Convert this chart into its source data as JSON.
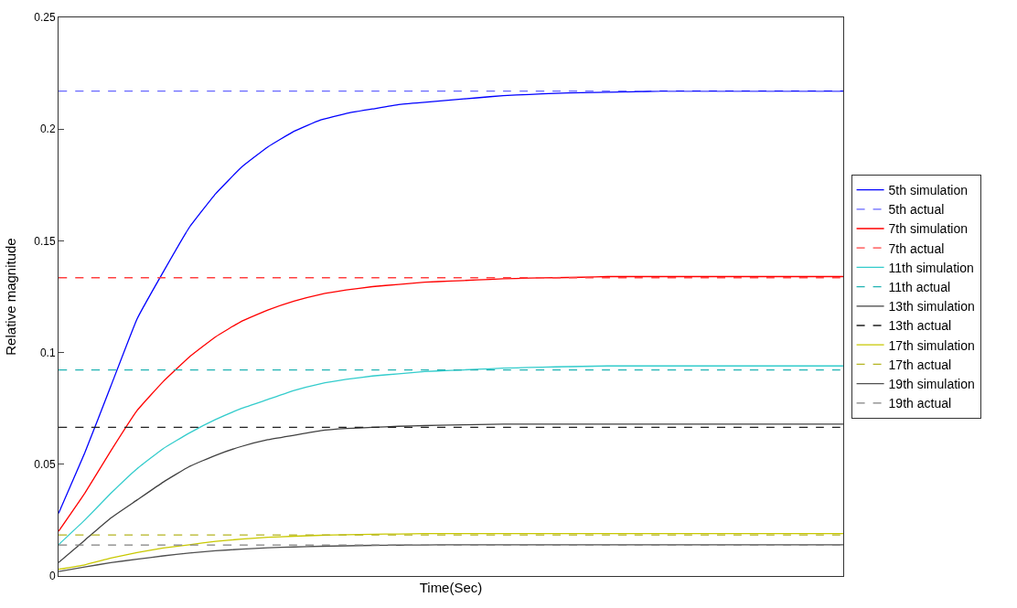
{
  "chart_data": {
    "type": "line",
    "xlabel": "Time(Sec)",
    "ylabel": "Relative magnitude",
    "categories": [
      null,
      null,
      null,
      null,
      null,
      null,
      null,
      null,
      null,
      null,
      null,
      null,
      null,
      null,
      null,
      null,
      null,
      null,
      null,
      null,
      null,
      null,
      null,
      null,
      null,
      null,
      null,
      null,
      null,
      null,
      null
    ],
    "ylim": [
      0,
      0.25
    ],
    "yticks": [
      0,
      0.05,
      0.1,
      0.15,
      0.2,
      0.25
    ],
    "tick_labels": "y",
    "legend": "right",
    "marker": "none",
    "series": [
      {
        "name": "5th simulation",
        "color": "#0000ff",
        "line_style": "solid",
        "values": [
          0.028,
          0.055,
          0.085,
          0.115,
          0.136,
          0.156,
          0.171,
          0.183,
          0.192,
          0.199,
          0.204,
          0.207,
          0.209,
          0.211,
          0.212,
          0.213,
          0.214,
          0.215,
          0.2155,
          0.216,
          0.2163,
          0.2165,
          0.2167,
          0.217,
          0.217,
          0.217,
          0.217,
          0.217,
          0.217,
          0.217,
          0.217
        ]
      },
      {
        "name": "5th actual",
        "color": "#6666ff",
        "line_style": "dashed",
        "values": [
          0.217,
          0.217,
          0.217,
          0.217,
          0.217,
          0.217,
          0.217,
          0.217,
          0.217,
          0.217,
          0.217,
          0.217,
          0.217,
          0.217,
          0.217,
          0.217,
          0.217,
          0.217,
          0.217,
          0.217,
          0.217,
          0.217,
          0.217,
          0.217,
          0.217,
          0.217,
          0.217,
          0.217,
          0.217,
          0.217,
          0.217
        ]
      },
      {
        "name": "7th simulation",
        "color": "#ff0000",
        "line_style": "solid",
        "values": [
          0.02,
          0.037,
          0.056,
          0.074,
          0.087,
          0.098,
          0.107,
          0.114,
          0.119,
          0.123,
          0.126,
          0.128,
          0.1295,
          0.1305,
          0.1315,
          0.132,
          0.1325,
          0.133,
          0.1333,
          0.1335,
          0.1337,
          0.134,
          0.134,
          0.134,
          0.134,
          0.134,
          0.134,
          0.134,
          0.134,
          0.134,
          0.134
        ]
      },
      {
        "name": "7th actual",
        "color": "#ff4040",
        "line_style": "dashed",
        "values": [
          0.1335,
          0.1335,
          0.1335,
          0.1335,
          0.1335,
          0.1335,
          0.1335,
          0.1335,
          0.1335,
          0.1335,
          0.1335,
          0.1335,
          0.1335,
          0.1335,
          0.1335,
          0.1335,
          0.1335,
          0.1335,
          0.1335,
          0.1335,
          0.1335,
          0.1335,
          0.1335,
          0.1335,
          0.1335,
          0.1335,
          0.1335,
          0.1335,
          0.1335,
          0.1335,
          0.1335
        ]
      },
      {
        "name": "11th simulation",
        "color": "#33cccc",
        "line_style": "solid",
        "values": [
          0.014,
          0.025,
          0.037,
          0.048,
          0.057,
          0.064,
          0.07,
          0.075,
          0.079,
          0.083,
          0.086,
          0.088,
          0.0895,
          0.0905,
          0.0915,
          0.092,
          0.0925,
          0.093,
          0.0933,
          0.0936,
          0.0938,
          0.094,
          0.094,
          0.094,
          0.094,
          0.094,
          0.094,
          0.094,
          0.094,
          0.094,
          0.094
        ]
      },
      {
        "name": "11th actual",
        "color": "#20b2b2",
        "line_style": "dashed",
        "values": [
          0.0922,
          0.0922,
          0.0922,
          0.0922,
          0.0922,
          0.0922,
          0.0922,
          0.0922,
          0.0922,
          0.0922,
          0.0922,
          0.0922,
          0.0922,
          0.0922,
          0.0922,
          0.0922,
          0.0922,
          0.0922,
          0.0922,
          0.0922,
          0.0922,
          0.0922,
          0.0922,
          0.0922,
          0.0922,
          0.0922,
          0.0922,
          0.0922,
          0.0922,
          0.0922,
          0.0922
        ]
      },
      {
        "name": "13th simulation",
        "color": "#404040",
        "line_style": "solid",
        "values": [
          0.006,
          0.016,
          0.026,
          0.034,
          0.042,
          0.049,
          0.054,
          0.058,
          0.061,
          0.063,
          0.065,
          0.066,
          0.0665,
          0.067,
          0.0673,
          0.0676,
          0.0678,
          0.068,
          0.068,
          0.068,
          0.068,
          0.068,
          0.068,
          0.068,
          0.068,
          0.068,
          0.068,
          0.068,
          0.068,
          0.068,
          0.068
        ]
      },
      {
        "name": "13th actual",
        "color": "#202020",
        "line_style": "dashed",
        "values": [
          0.0665,
          0.0665,
          0.0665,
          0.0665,
          0.0665,
          0.0665,
          0.0665,
          0.0665,
          0.0665,
          0.0665,
          0.0665,
          0.0665,
          0.0665,
          0.0665,
          0.0665,
          0.0665,
          0.0665,
          0.0665,
          0.0665,
          0.0665,
          0.0665,
          0.0665,
          0.0665,
          0.0665,
          0.0665,
          0.0665,
          0.0665,
          0.0665,
          0.0665,
          0.0665,
          0.0665
        ]
      },
      {
        "name": "17th simulation",
        "color": "#c8c800",
        "line_style": "solid",
        "values": [
          0.003,
          0.005,
          0.008,
          0.0105,
          0.0125,
          0.014,
          0.0155,
          0.0165,
          0.0173,
          0.0178,
          0.0182,
          0.0185,
          0.0187,
          0.0188,
          0.019,
          0.019,
          0.019,
          0.019,
          0.019,
          0.019,
          0.019,
          0.019,
          0.019,
          0.019,
          0.019,
          0.019,
          0.019,
          0.019,
          0.019,
          0.019,
          0.019
        ]
      },
      {
        "name": "17th actual",
        "color": "#b4b420",
        "line_style": "dashed",
        "values": [
          0.0184,
          0.0184,
          0.0184,
          0.0184,
          0.0184,
          0.0184,
          0.0184,
          0.0184,
          0.0184,
          0.0184,
          0.0184,
          0.0184,
          0.0184,
          0.0184,
          0.0184,
          0.0184,
          0.0184,
          0.0184,
          0.0184,
          0.0184,
          0.0184,
          0.0184,
          0.0184,
          0.0184,
          0.0184,
          0.0184,
          0.0184,
          0.0184,
          0.0184,
          0.0184,
          0.0184
        ]
      },
      {
        "name": "19th simulation",
        "color": "#505050",
        "line_style": "solid",
        "values": [
          0.002,
          0.004,
          0.006,
          0.0075,
          0.009,
          0.0103,
          0.0113,
          0.012,
          0.0126,
          0.013,
          0.0133,
          0.0135,
          0.0137,
          0.0138,
          0.0139,
          0.014,
          0.014,
          0.014,
          0.014,
          0.014,
          0.014,
          0.014,
          0.014,
          0.014,
          0.014,
          0.014,
          0.014,
          0.014,
          0.014,
          0.014,
          0.014
        ]
      },
      {
        "name": "19th actual",
        "color": "#808080",
        "line_style": "dashed",
        "values": [
          0.0139,
          0.0139,
          0.0139,
          0.0139,
          0.0139,
          0.0139,
          0.0139,
          0.0139,
          0.0139,
          0.0139,
          0.0139,
          0.0139,
          0.0139,
          0.0139,
          0.0139,
          0.0139,
          0.0139,
          0.0139,
          0.0139,
          0.0139,
          0.0139,
          0.0139,
          0.0139,
          0.0139,
          0.0139,
          0.0139,
          0.0139,
          0.0139,
          0.0139,
          0.0139,
          0.0139
        ]
      }
    ]
  }
}
